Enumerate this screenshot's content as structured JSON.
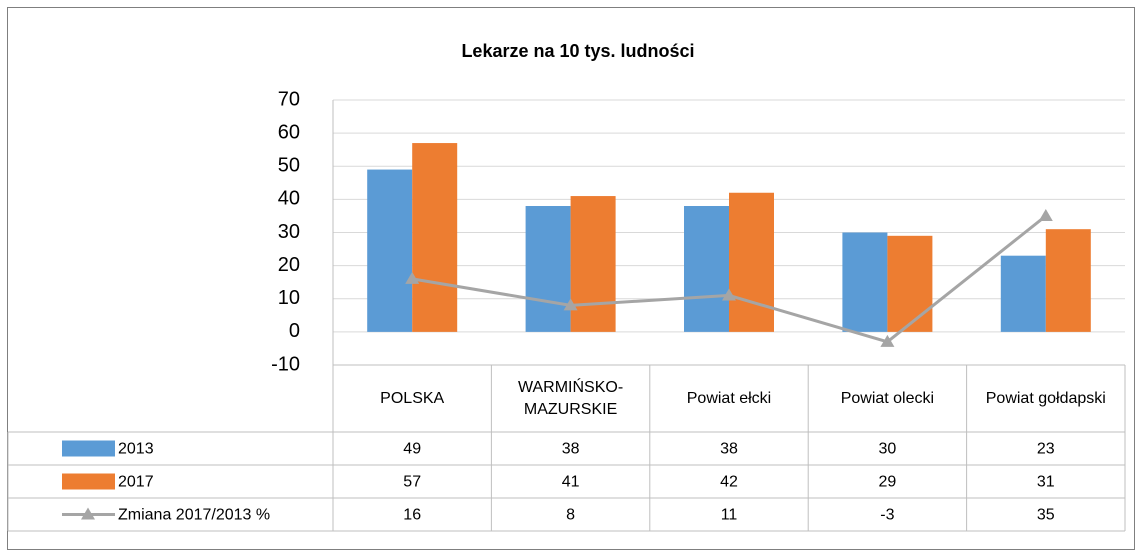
{
  "chart_data": {
    "type": "bar",
    "title": "Lekarze na 10 tys. ludności",
    "categories": [
      "POLSKA",
      "WARMIŃSKO-MAZURSKIE",
      "Powiat ełcki",
      "Powiat olecki",
      "Powiat gołdapski"
    ],
    "series": [
      {
        "name": "2013",
        "color": "#5b9bd5",
        "type": "bar",
        "values": [
          49,
          38,
          38,
          30,
          23
        ]
      },
      {
        "name": "2017",
        "color": "#ed7d31",
        "type": "bar",
        "values": [
          57,
          41,
          42,
          29,
          31
        ]
      },
      {
        "name": "Zmiana 2017/2013 %",
        "color": "#a5a5a5",
        "type": "line",
        "values": [
          16,
          8,
          11,
          -3,
          35
        ]
      }
    ],
    "ylim": [
      -10,
      70
    ],
    "yticks": [
      -10,
      0,
      10,
      20,
      30,
      40,
      50,
      60,
      70
    ],
    "grid": true,
    "legend": "table"
  }
}
